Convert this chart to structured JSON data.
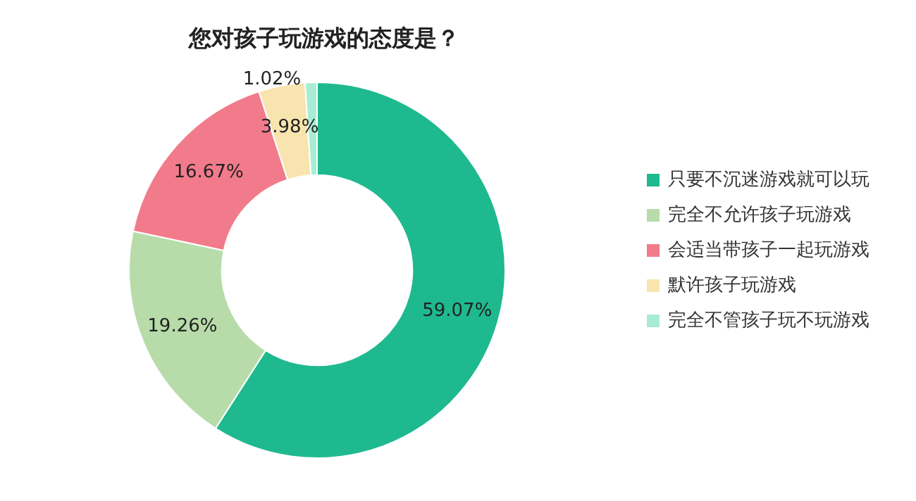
{
  "chart_data": {
    "type": "donut",
    "title": "您对孩子玩游戏的态度是？",
    "categories": [
      "只要不沉迷游戏就可以玩",
      "完全不允许孩子玩游戏",
      "会适当带孩子一起玩游戏",
      "默许孩子玩游戏",
      "完全不管孩子玩不玩游戏"
    ],
    "values": [
      59.07,
      19.26,
      16.67,
      3.98,
      1.02
    ],
    "value_labels": [
      "59.07%",
      "19.26%",
      "16.67%",
      "3.98%",
      "1.02%"
    ],
    "colors": [
      "#1fb98f",
      "#b7dca9",
      "#f27b8b",
      "#f8e4ae",
      "#a9ecd4"
    ],
    "legend": "right"
  }
}
